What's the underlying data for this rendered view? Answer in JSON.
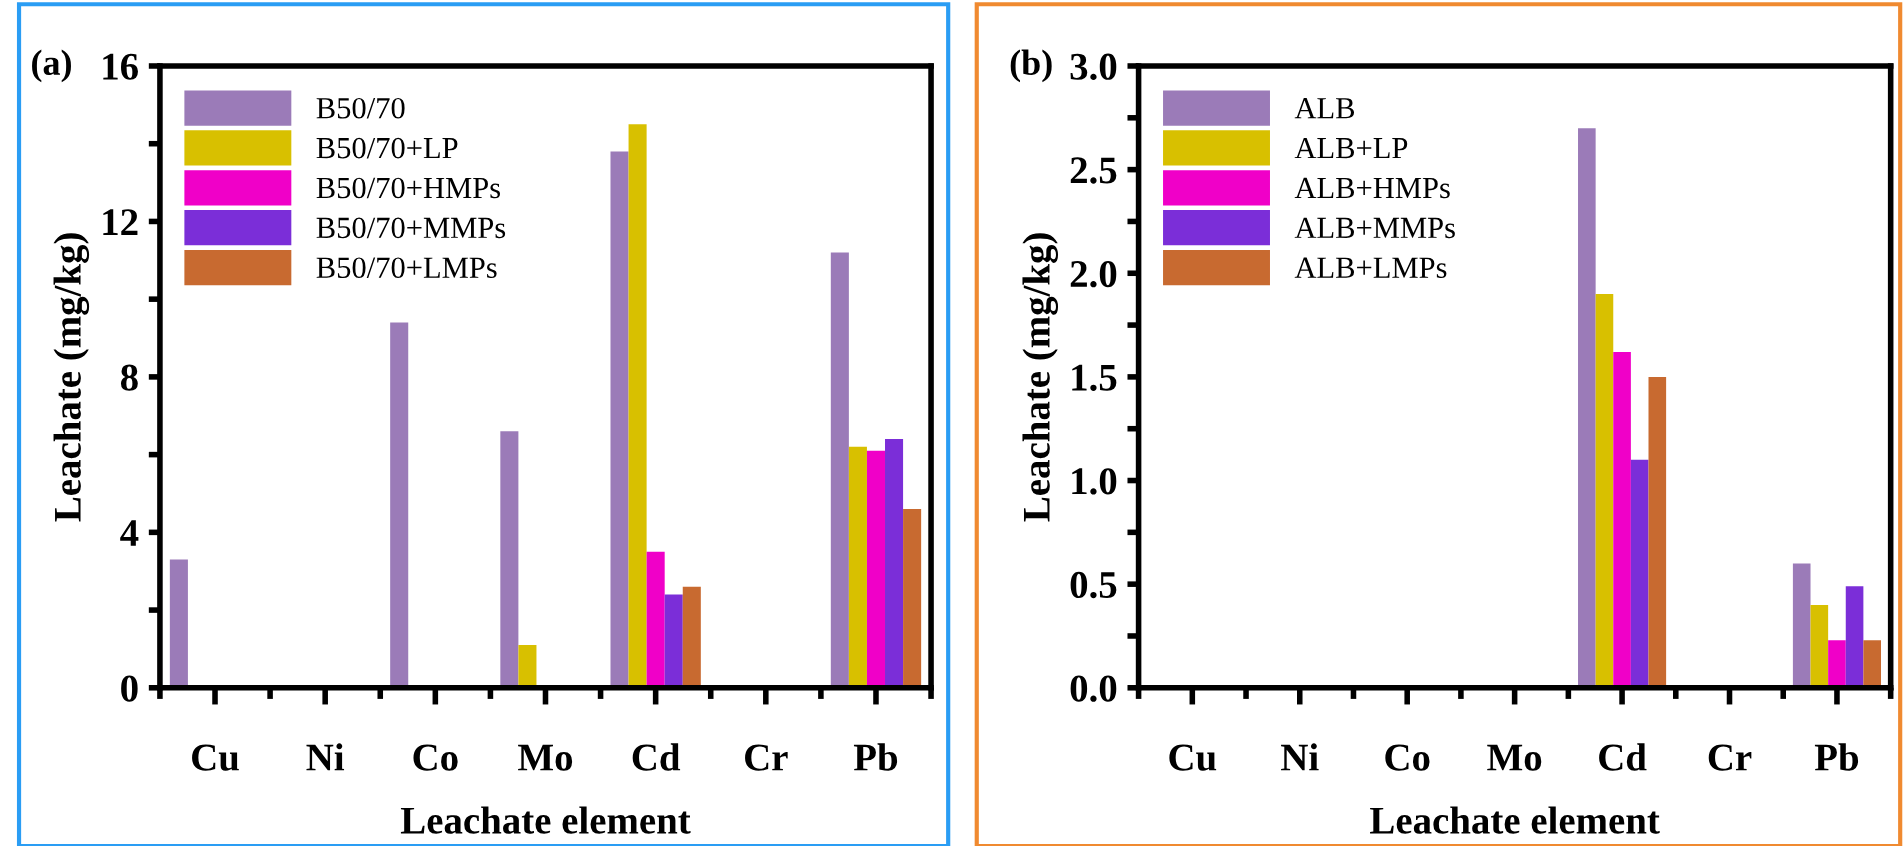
{
  "chart_data": [
    {
      "type": "bar",
      "title": "(a)",
      "xlabel": "Leachate element",
      "ylabel": "Leachate (mg/kg)",
      "categories": [
        "Cu",
        "Ni",
        "Co",
        "Mo",
        "Cd",
        "Cr",
        "Pb"
      ],
      "series": [
        {
          "name": "B50/70",
          "color": "#9b7bb8",
          "values": [
            3.3,
            null,
            9.4,
            6.6,
            13.8,
            null,
            11.2
          ]
        },
        {
          "name": "B50/70+LP",
          "color": "#d8c000",
          "values": [
            null,
            null,
            null,
            1.1,
            14.5,
            null,
            6.2
          ]
        },
        {
          "name": "B50/70+HMPs",
          "color": "#f000c8",
          "values": [
            null,
            null,
            null,
            null,
            3.5,
            null,
            6.1
          ]
        },
        {
          "name": "B50/70+MMPs",
          "color": "#7b2ed8",
          "values": [
            null,
            null,
            null,
            null,
            2.4,
            null,
            6.4
          ]
        },
        {
          "name": "B50/70+LMPs",
          "color": "#c86a30",
          "values": [
            null,
            null,
            null,
            null,
            2.6,
            null,
            4.6
          ]
        }
      ],
      "ylim": [
        0,
        16
      ],
      "yticks": [
        0,
        {
          "value": 2,
          "label": null
        },
        4,
        {
          "value": 6,
          "label": null
        },
        8,
        {
          "value": 10,
          "label": null
        },
        12,
        {
          "value": 14,
          "label": null
        },
        16
      ],
      "legend": "top left",
      "grid": false
    },
    {
      "type": "bar",
      "title": "(b)",
      "xlabel": "Leachate element",
      "ylabel": "Leachate (mg/kg)",
      "categories": [
        "Cu",
        "Ni",
        "Co",
        "Mo",
        "Cd",
        "Cr",
        "Pb"
      ],
      "series": [
        {
          "name": "ALB",
          "color": "#9b7bb8",
          "values": [
            null,
            null,
            null,
            null,
            2.7,
            null,
            0.6
          ]
        },
        {
          "name": "ALB+LP",
          "color": "#d8c000",
          "values": [
            null,
            null,
            null,
            null,
            1.9,
            null,
            0.4
          ]
        },
        {
          "name": "ALB+HMPs",
          "color": "#f000c8",
          "values": [
            null,
            null,
            null,
            null,
            1.62,
            null,
            0.23
          ]
        },
        {
          "name": "ALB+MMPs",
          "color": "#7b2ed8",
          "values": [
            null,
            null,
            null,
            null,
            1.1,
            null,
            0.49
          ]
        },
        {
          "name": "ALB+LMPs",
          "color": "#c86a30",
          "values": [
            null,
            null,
            null,
            null,
            1.5,
            null,
            0.23
          ]
        }
      ],
      "ylim": [
        0,
        3.0
      ],
      "yticks": [
        {
          "value": 0,
          "label": "0.0"
        },
        {
          "value": 0.25,
          "label": null
        },
        {
          "value": 0.5,
          "label": "0.5"
        },
        {
          "value": 0.75,
          "label": null
        },
        {
          "value": 1.0,
          "label": "1.0"
        },
        {
          "value": 1.25,
          "label": null
        },
        {
          "value": 1.5,
          "label": "1.5"
        },
        {
          "value": 1.75,
          "label": null
        },
        {
          "value": 2.0,
          "label": "2.0"
        },
        {
          "value": 2.25,
          "label": null
        },
        {
          "value": 2.5,
          "label": "2.5"
        },
        {
          "value": 2.75,
          "label": null
        },
        {
          "value": 3.0,
          "label": "3.0"
        }
      ],
      "legend": "top left",
      "grid": false
    }
  ]
}
